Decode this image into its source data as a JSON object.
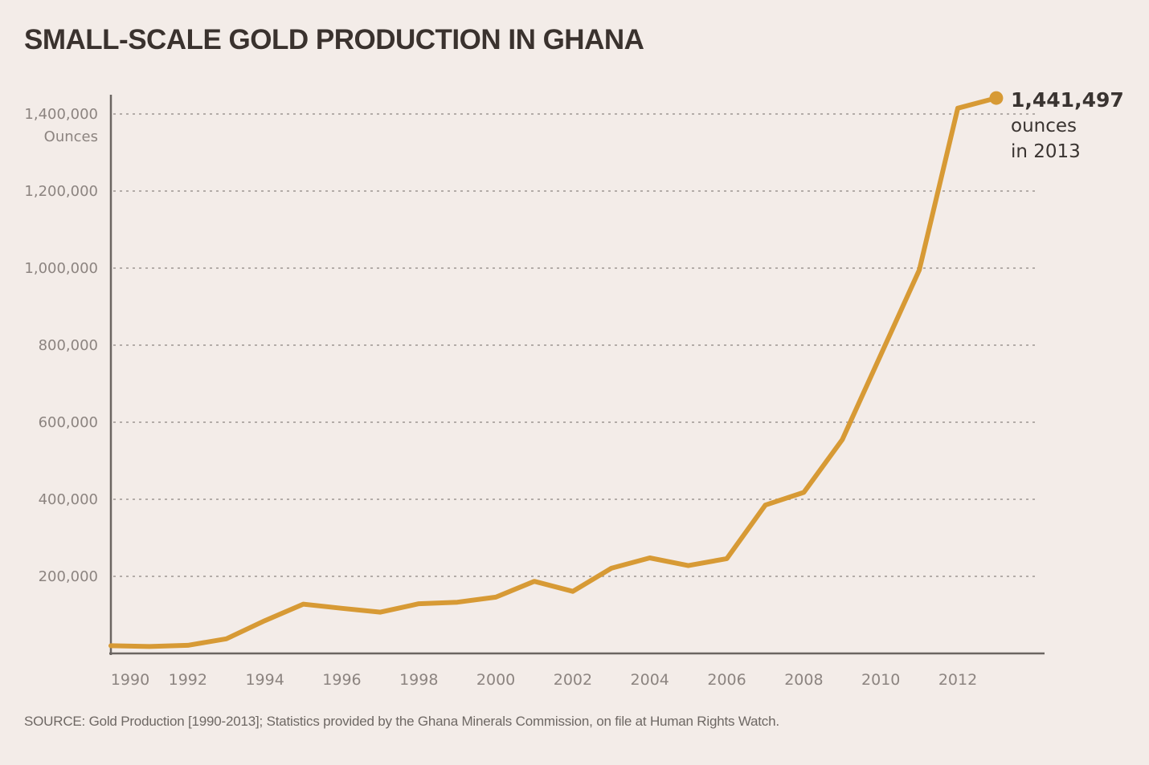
{
  "title": "SMALL-SCALE GOLD PRODUCTION IN GHANA",
  "colors": {
    "background": "#F3ECE8",
    "line": "#D79A35",
    "marker": "#D79A35",
    "title_text": "#3A322E",
    "axis": "#6B6561",
    "gridline": "#B3ACA8",
    "tick_text": "#8C8480",
    "annotation_text": "#3A3431",
    "source_text": "#6E6864"
  },
  "annotation": {
    "value": "1,441,497",
    "line2": "ounces",
    "line3": "in 2013"
  },
  "source": "SOURCE: Gold Production [1990-2013]; Statistics provided by the Ghana Minerals Commission, on file at Human Rights Watch.",
  "chart_data": {
    "type": "line",
    "title": "SMALL-SCALE GOLD PRODUCTION IN GHANA",
    "ylabel": "Ounces",
    "xlabel": "",
    "x": [
      1990,
      1991,
      1992,
      1993,
      1994,
      1995,
      1996,
      1997,
      1998,
      1999,
      2000,
      2001,
      2002,
      2003,
      2004,
      2005,
      2006,
      2007,
      2008,
      2009,
      2010,
      2011,
      2012,
      2013
    ],
    "values": [
      20000,
      18000,
      21000,
      38000,
      85000,
      128000,
      117000,
      107000,
      129000,
      133000,
      146000,
      187000,
      161000,
      221000,
      248000,
      228000,
      246000,
      385000,
      418000,
      555000,
      775000,
      995000,
      1415000,
      1441497
    ],
    "x_ticks": [
      1990,
      1992,
      1994,
      1996,
      1998,
      2000,
      2002,
      2004,
      2006,
      2008,
      2010,
      2012
    ],
    "x_tick_labels": [
      "1990",
      "1992",
      "1994",
      "1996",
      "1998",
      "2000",
      "2002",
      "2004",
      "2006",
      "2008",
      "2010",
      "2012"
    ],
    "y_ticks": [
      200000,
      400000,
      600000,
      800000,
      1000000,
      1200000,
      1400000
    ],
    "y_tick_labels": [
      "200,000",
      "400,000",
      "600,000",
      "800,000",
      "1,000,000",
      "1,200,000",
      "1,400,000"
    ],
    "ylim": [
      0,
      1500000
    ],
    "grid": "horizontal-dashed",
    "legend": "none",
    "end_point_marker": true,
    "end_point_annotation": "1,441,497 ounces in 2013"
  }
}
